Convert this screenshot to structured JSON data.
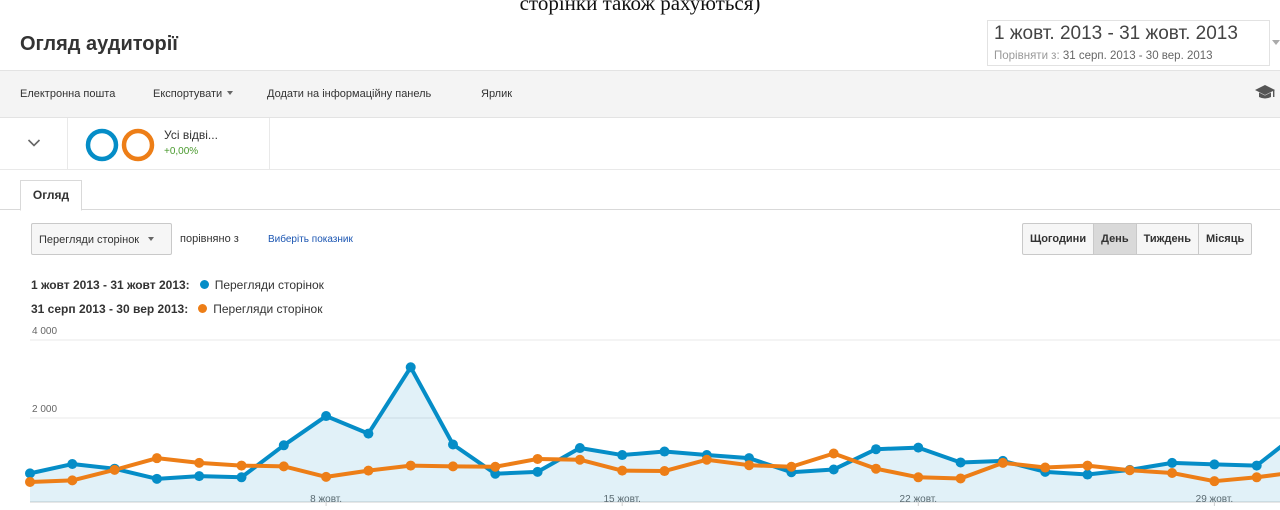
{
  "caption": "сторінки також рахуються)",
  "header": {
    "title": "Огляд аудиторії",
    "date_range": "1 жовт. 2013 - 31 жовт. 2013",
    "compare_label": "Порівняти з:",
    "compare_range": "31 серп. 2013 - 30 вер. 2013"
  },
  "toolbar": {
    "email": "Електронна пошта",
    "export": "Експортувати",
    "add_dashboard": "Додати на інформаційну панель",
    "shortcut": "Ярлик",
    "icon": "graduation-cap-icon"
  },
  "segment": {
    "name": "Усі відві...",
    "change": "+0,00%",
    "colors": [
      "#058dc7",
      "#ed7e17"
    ]
  },
  "tabs": [
    {
      "label": "Огляд"
    }
  ],
  "controls": {
    "metric": "Перегляди сторінок",
    "compare_text": "порівняно з",
    "choose_metric": "Виберіть показник",
    "granularity": [
      "Щогодини",
      "День",
      "Тиждень",
      "Місяць"
    ],
    "active_granularity": "День"
  },
  "legend": [
    {
      "period": "1 жовт 2013 - 31 жовт 2013:",
      "metric": "Перегляди сторінок",
      "color": "#058dc7"
    },
    {
      "period": "31 серп 2013 - 30 вер 2013:",
      "metric": "Перегляди сторінок",
      "color": "#ed7e17"
    }
  ],
  "chart_data": {
    "type": "line",
    "x": [
      1,
      2,
      3,
      4,
      5,
      6,
      7,
      8,
      9,
      10,
      11,
      12,
      13,
      14,
      15,
      16,
      17,
      18,
      19,
      20,
      21,
      22,
      23,
      24,
      25,
      26,
      27,
      28,
      29,
      30,
      31
    ],
    "x_tick_labels": [
      {
        "x": 8,
        "label": "8 жовт."
      },
      {
        "x": 15,
        "label": "15 жовт."
      },
      {
        "x": 22,
        "label": "22 жовт."
      },
      {
        "x": 29,
        "label": "29 жовт."
      }
    ],
    "y_tick_labels": [
      {
        "y": 4000,
        "label": "4 000"
      },
      {
        "y": 2000,
        "label": "2 000"
      }
    ],
    "ylim": [
      0,
      4000
    ],
    "grid": true,
    "series": [
      {
        "name": "1 жовт 2013 - 31 жовт 2013: Перегляди сторінок",
        "color": "#058dc7",
        "area": true,
        "values": [
          580,
          820,
          700,
          440,
          510,
          480,
          1300,
          2050,
          1600,
          3300,
          1320,
          570,
          620,
          1230,
          1050,
          1140,
          1050,
          970,
          610,
          680,
          1200,
          1240,
          860,
          900,
          620,
          550,
          670,
          850,
          810,
          780,
          1630
        ]
      },
      {
        "name": "31 серп 2013 - 30 вер 2013: Перегляди сторінок",
        "color": "#ed7e17",
        "area": false,
        "values": [
          360,
          400,
          670,
          970,
          850,
          780,
          760,
          490,
          650,
          780,
          760,
          750,
          950,
          930,
          650,
          640,
          930,
          790,
          750,
          1090,
          700,
          480,
          450,
          850,
          730,
          780,
          660,
          590,
          380,
          480,
          620
        ]
      }
    ]
  }
}
